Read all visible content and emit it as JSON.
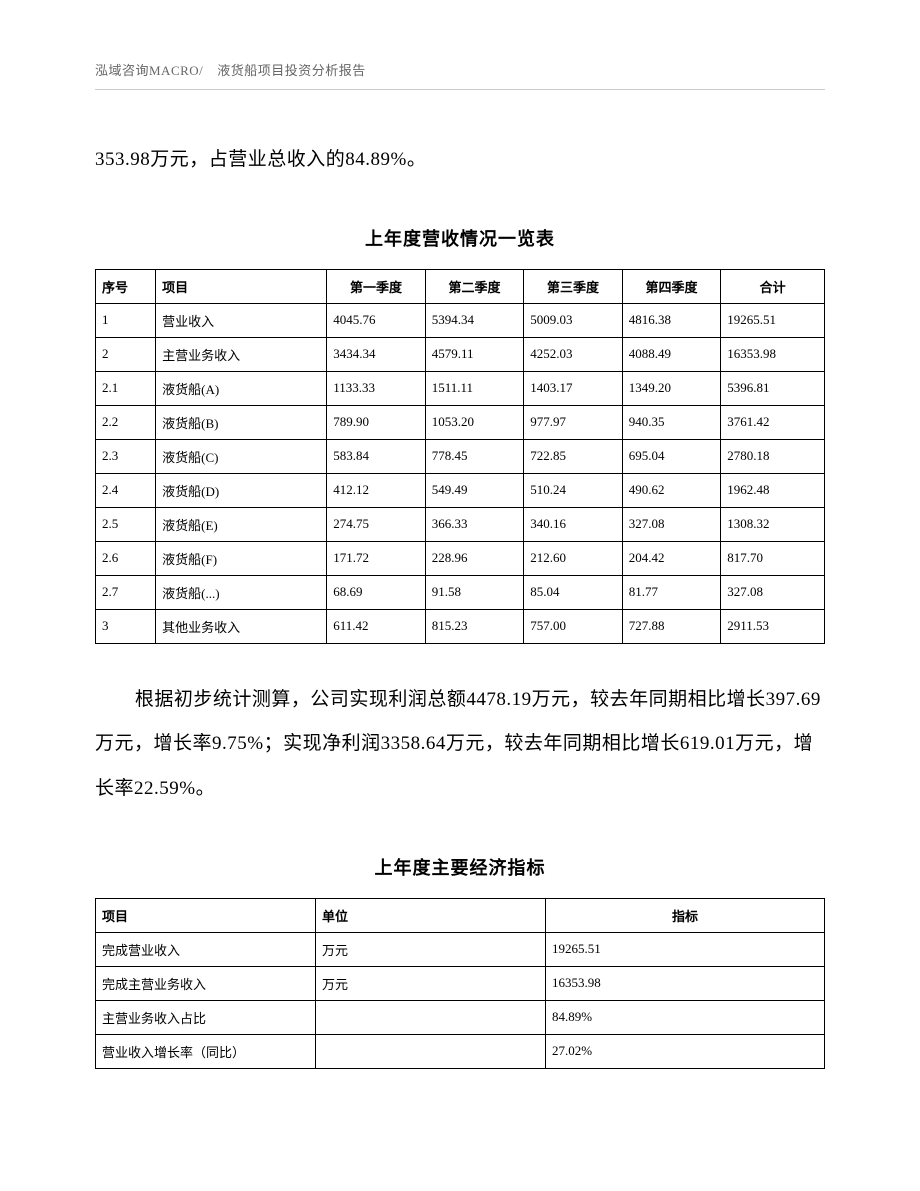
{
  "header": {
    "company": "泓域咨询MACRO/",
    "doc_title": "液货船项目投资分析报告"
  },
  "paragraph1": "353.98万元，占营业总收入的84.89%。",
  "table1": {
    "title": "上年度营收情况一览表",
    "columns": [
      "序号",
      "项目",
      "第一季度",
      "第二季度",
      "第三季度",
      "第四季度",
      "合计"
    ],
    "rows": [
      [
        "1",
        "营业收入",
        "4045.76",
        "5394.34",
        "5009.03",
        "4816.38",
        "19265.51"
      ],
      [
        "2",
        "主营业务收入",
        "3434.34",
        "4579.11",
        "4252.03",
        "4088.49",
        "16353.98"
      ],
      [
        "2.1",
        "液货船(A)",
        "1133.33",
        "1511.11",
        "1403.17",
        "1349.20",
        "5396.81"
      ],
      [
        "2.2",
        "液货船(B)",
        "789.90",
        "1053.20",
        "977.97",
        "940.35",
        "3761.42"
      ],
      [
        "2.3",
        "液货船(C)",
        "583.84",
        "778.45",
        "722.85",
        "695.04",
        "2780.18"
      ],
      [
        "2.4",
        "液货船(D)",
        "412.12",
        "549.49",
        "510.24",
        "490.62",
        "1962.48"
      ],
      [
        "2.5",
        "液货船(E)",
        "274.75",
        "366.33",
        "340.16",
        "327.08",
        "1308.32"
      ],
      [
        "2.6",
        "液货船(F)",
        "171.72",
        "228.96",
        "212.60",
        "204.42",
        "817.70"
      ],
      [
        "2.7",
        "液货船(...)",
        "68.69",
        "91.58",
        "85.04",
        "81.77",
        "327.08"
      ],
      [
        "3",
        "其他业务收入",
        "611.42",
        "815.23",
        "757.00",
        "727.88",
        "2911.53"
      ]
    ]
  },
  "paragraph2": "根据初步统计测算，公司实现利润总额4478.19万元，较去年同期相比增长397.69万元，增长率9.75%；实现净利润3358.64万元，较去年同期相比增长619.01万元，增长率22.59%。",
  "table2": {
    "title": "上年度主要经济指标",
    "columns": [
      "项目",
      "单位",
      "指标"
    ],
    "rows": [
      [
        "完成营业收入",
        "万元",
        "19265.51"
      ],
      [
        "完成主营业务收入",
        "万元",
        "16353.98"
      ],
      [
        "主营业务收入占比",
        "",
        "84.89%"
      ],
      [
        "营业收入增长率（同比）",
        "",
        "27.02%"
      ]
    ]
  }
}
